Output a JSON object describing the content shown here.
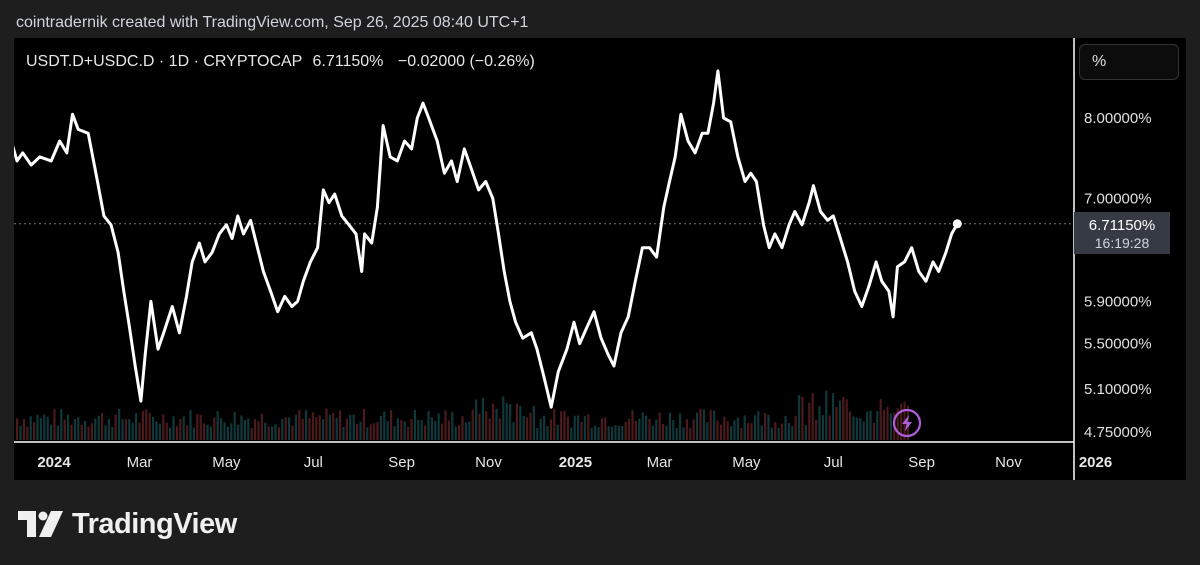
{
  "attribution": "cointradernik created with TradingView.com, Sep 26, 2025 08:40 UTC+1",
  "legend": {
    "symbol": "USDT.D+USDC.D · 1D · CRYPTOCAP",
    "value": "6.71150%",
    "change": "−0.02000 (−0.26%)"
  },
  "scale_button": "%",
  "price_label": {
    "value": "6.71150%",
    "countdown": "16:19:28",
    "bg": "#363a45"
  },
  "brand": {
    "name": "TradingView",
    "logo_icon": "tradingview-logo-icon"
  },
  "lightning_icon": "lightning-icon",
  "chart_data": {
    "type": "line",
    "scale": "log",
    "grid": false,
    "ylim": [
      4.75,
      8.8
    ],
    "y_ticks": [
      {
        "value": 8.0,
        "label": "8.00000%"
      },
      {
        "value": 7.0,
        "label": "7.00000%"
      },
      {
        "value": 5.9,
        "label": "5.90000%"
      },
      {
        "value": 5.5,
        "label": "5.50000%"
      },
      {
        "value": 5.1,
        "label": "5.10000%"
      },
      {
        "value": 4.75,
        "label": "4.75000%"
      }
    ],
    "x_ticks": [
      {
        "date": "2024-01-01",
        "label": "2024",
        "bold": true
      },
      {
        "date": "2024-03-01",
        "label": "Mar",
        "bold": false
      },
      {
        "date": "2024-05-01",
        "label": "May",
        "bold": false
      },
      {
        "date": "2024-07-01",
        "label": "Jul",
        "bold": false
      },
      {
        "date": "2024-09-01",
        "label": "Sep",
        "bold": false
      },
      {
        "date": "2024-11-01",
        "label": "Nov",
        "bold": false
      },
      {
        "date": "2025-01-01",
        "label": "2025",
        "bold": true
      },
      {
        "date": "2025-03-01",
        "label": "Mar",
        "bold": false
      },
      {
        "date": "2025-05-01",
        "label": "May",
        "bold": false
      },
      {
        "date": "2025-07-01",
        "label": "Jul",
        "bold": false
      },
      {
        "date": "2025-09-01",
        "label": "Sep",
        "bold": false
      },
      {
        "date": "2025-11-01",
        "label": "Nov",
        "bold": false
      },
      {
        "date": "2026-01-01",
        "label": "2026",
        "bold": true
      }
    ],
    "series": [
      {
        "color": "#ffffff",
        "points": [
          [
            "2023-11-26",
            8.35
          ],
          [
            "2023-12-02",
            7.7
          ],
          [
            "2023-12-06",
            7.45
          ],
          [
            "2023-12-10",
            7.55
          ],
          [
            "2023-12-16",
            7.4
          ],
          [
            "2023-12-22",
            7.5
          ],
          [
            "2023-12-30",
            7.45
          ],
          [
            "2024-01-05",
            7.7
          ],
          [
            "2024-01-10",
            7.55
          ],
          [
            "2024-01-14",
            8.05
          ],
          [
            "2024-01-18",
            7.85
          ],
          [
            "2024-01-25",
            7.8
          ],
          [
            "2024-01-31",
            7.25
          ],
          [
            "2024-02-05",
            6.8
          ],
          [
            "2024-02-10",
            6.7
          ],
          [
            "2024-02-15",
            6.4
          ],
          [
            "2024-02-19",
            6.0
          ],
          [
            "2024-02-23",
            5.65
          ],
          [
            "2024-02-27",
            5.3
          ],
          [
            "2024-03-02",
            5.0
          ],
          [
            "2024-03-05",
            5.4
          ],
          [
            "2024-03-09",
            5.9
          ],
          [
            "2024-03-14",
            5.45
          ],
          [
            "2024-03-18",
            5.6
          ],
          [
            "2024-03-24",
            5.85
          ],
          [
            "2024-03-29",
            5.6
          ],
          [
            "2024-04-03",
            5.95
          ],
          [
            "2024-04-07",
            6.3
          ],
          [
            "2024-04-12",
            6.5
          ],
          [
            "2024-04-16",
            6.3
          ],
          [
            "2024-04-21",
            6.4
          ],
          [
            "2024-04-26",
            6.6
          ],
          [
            "2024-05-01",
            6.7
          ],
          [
            "2024-05-05",
            6.55
          ],
          [
            "2024-05-09",
            6.8
          ],
          [
            "2024-05-13",
            6.6
          ],
          [
            "2024-05-18",
            6.75
          ],
          [
            "2024-05-22",
            6.5
          ],
          [
            "2024-05-27",
            6.2
          ],
          [
            "2024-06-01",
            6.0
          ],
          [
            "2024-06-06",
            5.8
          ],
          [
            "2024-06-11",
            5.95
          ],
          [
            "2024-06-16",
            5.85
          ],
          [
            "2024-06-20",
            5.9
          ],
          [
            "2024-06-24",
            6.1
          ],
          [
            "2024-06-29",
            6.3
          ],
          [
            "2024-07-04",
            6.45
          ],
          [
            "2024-07-08",
            7.1
          ],
          [
            "2024-07-12",
            6.95
          ],
          [
            "2024-07-16",
            7.05
          ],
          [
            "2024-07-21",
            6.8
          ],
          [
            "2024-07-26",
            6.7
          ],
          [
            "2024-07-31",
            6.6
          ],
          [
            "2024-08-04",
            6.2
          ],
          [
            "2024-08-06",
            6.6
          ],
          [
            "2024-08-11",
            6.5
          ],
          [
            "2024-08-15",
            6.9
          ],
          [
            "2024-08-19",
            7.9
          ],
          [
            "2024-08-24",
            7.5
          ],
          [
            "2024-08-29",
            7.45
          ],
          [
            "2024-09-03",
            7.7
          ],
          [
            "2024-09-08",
            7.6
          ],
          [
            "2024-09-12",
            8.0
          ],
          [
            "2024-09-16",
            8.2
          ],
          [
            "2024-09-20",
            8.0
          ],
          [
            "2024-09-26",
            7.7
          ],
          [
            "2024-10-01",
            7.3
          ],
          [
            "2024-10-06",
            7.45
          ],
          [
            "2024-10-10",
            7.2
          ],
          [
            "2024-10-15",
            7.6
          ],
          [
            "2024-10-20",
            7.35
          ],
          [
            "2024-10-25",
            7.1
          ],
          [
            "2024-10-30",
            7.2
          ],
          [
            "2024-11-04",
            7.0
          ],
          [
            "2024-11-08",
            6.6
          ],
          [
            "2024-11-12",
            6.2
          ],
          [
            "2024-11-16",
            5.9
          ],
          [
            "2024-11-20",
            5.7
          ],
          [
            "2024-11-25",
            5.55
          ],
          [
            "2024-12-01",
            5.6
          ],
          [
            "2024-12-05",
            5.45
          ],
          [
            "2024-12-10",
            5.2
          ],
          [
            "2024-12-15",
            4.95
          ],
          [
            "2024-12-20",
            5.25
          ],
          [
            "2024-12-26",
            5.45
          ],
          [
            "2024-12-31",
            5.7
          ],
          [
            "2025-01-04",
            5.5
          ],
          [
            "2025-01-09",
            5.65
          ],
          [
            "2025-01-14",
            5.8
          ],
          [
            "2025-01-19",
            5.55
          ],
          [
            "2025-01-24",
            5.4
          ],
          [
            "2025-01-28",
            5.3
          ],
          [
            "2025-02-02",
            5.6
          ],
          [
            "2025-02-07",
            5.75
          ],
          [
            "2025-02-12",
            6.1
          ],
          [
            "2025-02-17",
            6.45
          ],
          [
            "2025-02-22",
            6.45
          ],
          [
            "2025-02-27",
            6.35
          ],
          [
            "2025-03-04",
            6.9
          ],
          [
            "2025-03-08",
            7.2
          ],
          [
            "2025-03-12",
            7.5
          ],
          [
            "2025-03-16",
            8.05
          ],
          [
            "2025-03-21",
            7.7
          ],
          [
            "2025-03-26",
            7.55
          ],
          [
            "2025-03-31",
            7.8
          ],
          [
            "2025-04-04",
            7.8
          ],
          [
            "2025-04-08",
            8.2
          ],
          [
            "2025-04-11",
            8.65
          ],
          [
            "2025-04-15",
            8.0
          ],
          [
            "2025-04-20",
            7.95
          ],
          [
            "2025-04-25",
            7.5
          ],
          [
            "2025-04-30",
            7.2
          ],
          [
            "2025-05-04",
            7.3
          ],
          [
            "2025-05-08",
            7.2
          ],
          [
            "2025-05-13",
            6.7
          ],
          [
            "2025-05-17",
            6.45
          ],
          [
            "2025-05-21",
            6.6
          ],
          [
            "2025-05-26",
            6.45
          ],
          [
            "2025-05-31",
            6.7
          ],
          [
            "2025-06-04",
            6.85
          ],
          [
            "2025-06-09",
            6.7
          ],
          [
            "2025-06-14",
            6.95
          ],
          [
            "2025-06-17",
            7.15
          ],
          [
            "2025-06-22",
            6.85
          ],
          [
            "2025-06-27",
            6.75
          ],
          [
            "2025-07-01",
            6.8
          ],
          [
            "2025-07-06",
            6.55
          ],
          [
            "2025-07-11",
            6.3
          ],
          [
            "2025-07-16",
            6.0
          ],
          [
            "2025-07-21",
            5.85
          ],
          [
            "2025-07-26",
            6.05
          ],
          [
            "2025-07-31",
            6.3
          ],
          [
            "2025-08-04",
            6.1
          ],
          [
            "2025-08-09",
            6.0
          ],
          [
            "2025-08-12",
            5.75
          ],
          [
            "2025-08-15",
            6.25
          ],
          [
            "2025-08-20",
            6.3
          ],
          [
            "2025-08-25",
            6.45
          ],
          [
            "2025-08-30",
            6.2
          ],
          [
            "2025-09-04",
            6.1
          ],
          [
            "2025-09-09",
            6.3
          ],
          [
            "2025-09-13",
            6.2
          ],
          [
            "2025-09-18",
            6.4
          ],
          [
            "2025-09-22",
            6.6
          ],
          [
            "2025-09-26",
            6.7115
          ]
        ]
      }
    ]
  }
}
